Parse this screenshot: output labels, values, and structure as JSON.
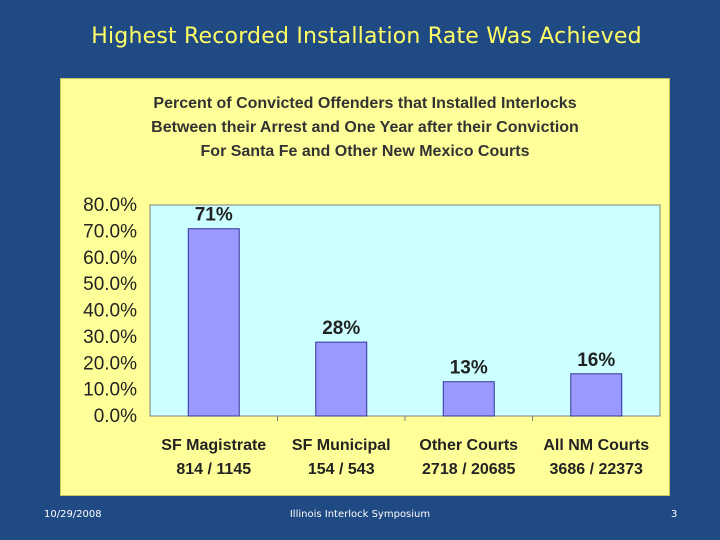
{
  "slide": {
    "title": "Highest Recorded Installation Rate Was Achieved",
    "footer_date": "10/29/2008",
    "footer_event": "Illinois Interlock Symposium",
    "page_number": "3"
  },
  "colors": {
    "background": "#1f4a84",
    "title_text": "#ffff66",
    "panel": "#ffff99",
    "plot_area": "#ccffff",
    "bar_fill": "#9999ff",
    "bar_stroke": "#333399"
  },
  "chart_data": {
    "type": "bar",
    "title_lines": [
      "Percent of Convicted Offenders that Installed Interlocks",
      "Between their Arrest and One Year after their Conviction",
      "For Santa Fe and Other New Mexico Courts"
    ],
    "categories": [
      {
        "name": "SF Magistrate",
        "counts": "814 / 1145"
      },
      {
        "name": "SF Municipal",
        "counts": "154 / 543"
      },
      {
        "name": "Other Courts",
        "counts": "2718 / 20685"
      },
      {
        "name": "All NM Courts",
        "counts": "3686 / 22373"
      }
    ],
    "values": [
      71,
      28,
      13,
      16
    ],
    "data_labels": [
      "71%",
      "28%",
      "13%",
      "16%"
    ],
    "y_ticks": [
      0,
      10,
      20,
      30,
      40,
      50,
      60,
      70,
      80
    ],
    "y_tick_labels": [
      "0.0%",
      "10.0%",
      "20.0%",
      "30.0%",
      "40.0%",
      "50.0%",
      "60.0%",
      "70.0%",
      "80.0%"
    ],
    "ylim": [
      0,
      80
    ],
    "grid": false,
    "legend": "none"
  }
}
